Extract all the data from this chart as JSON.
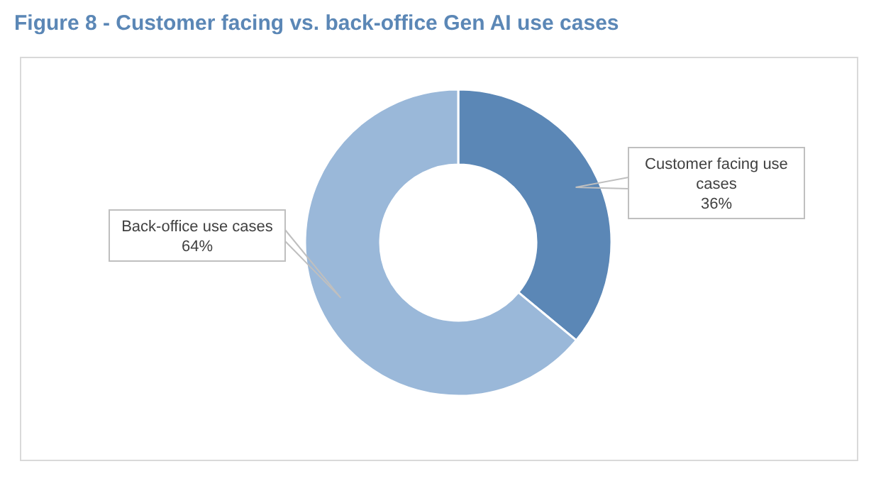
{
  "chart_data": {
    "type": "donut",
    "title": "Figure 8 - Customer facing vs. back-office Gen AI use cases",
    "categories": [
      "Customer facing use cases",
      "Back-office use cases"
    ],
    "values": [
      36,
      64
    ],
    "value_labels": [
      "36%",
      "64%"
    ],
    "colors": [
      "#5b87b6",
      "#9ab8d9"
    ]
  }
}
